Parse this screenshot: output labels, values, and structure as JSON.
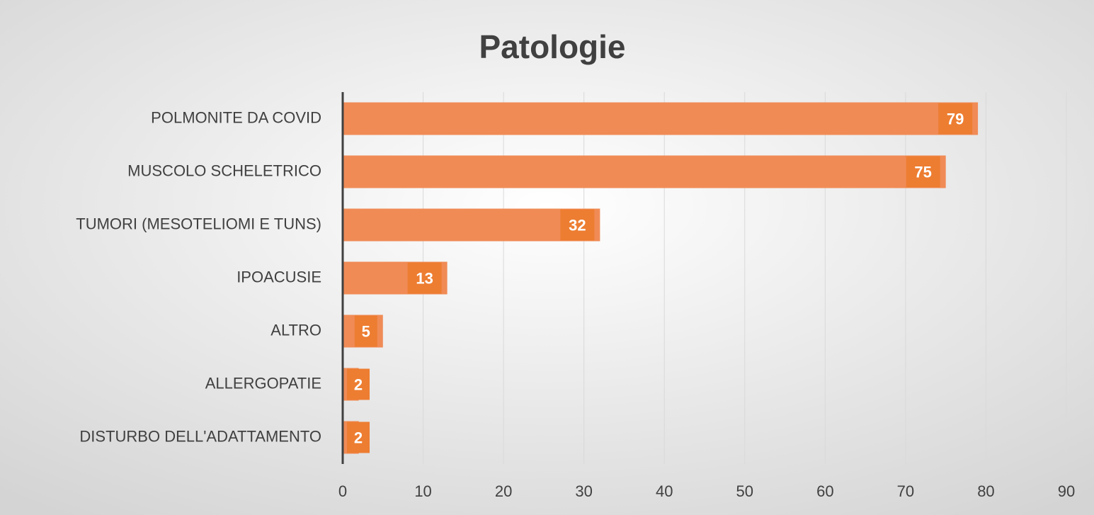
{
  "chart_data": {
    "type": "bar",
    "orientation": "horizontal",
    "title": "Patologie",
    "categories": [
      "POLMONITE DA COVID",
      "MUSCOLO SCHELETRICO",
      "TUMORI (MESOTELIOMI E TUNS)",
      "IPOACUSIE",
      "ALTRO",
      "ALLERGOPATIE",
      "DISTURBO DELL'ADATTAMENTO"
    ],
    "values": [
      79,
      75,
      32,
      13,
      5,
      2,
      2
    ],
    "color": "#f08b56",
    "label_color": "#ed7d31",
    "xlim": [
      0,
      90
    ],
    "xticks": [
      0,
      10,
      20,
      30,
      40,
      50,
      60,
      70,
      80,
      90
    ],
    "grid": true
  }
}
